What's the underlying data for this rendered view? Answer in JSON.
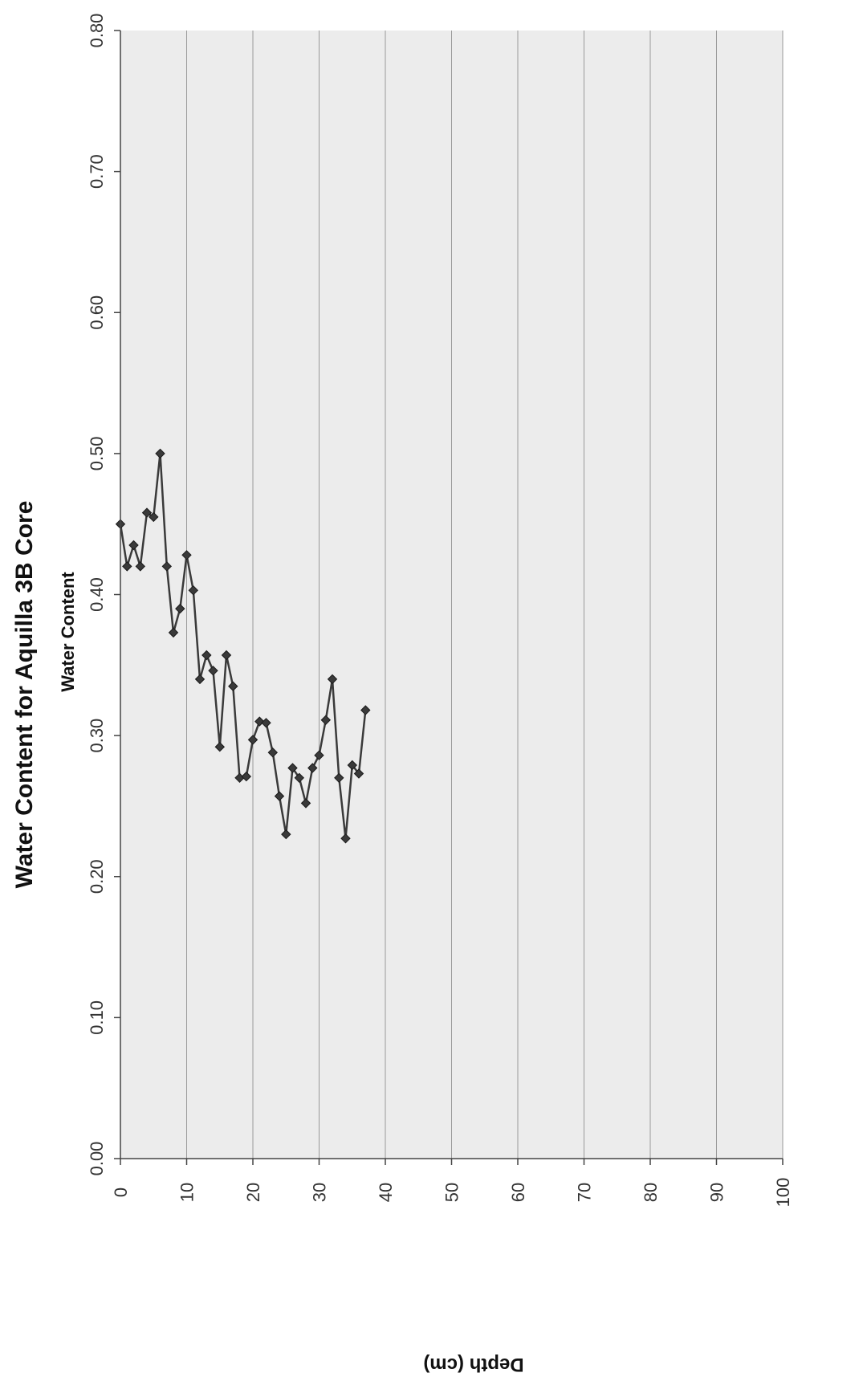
{
  "chart_data": {
    "type": "line",
    "title": "Water Content for Aquilla 3B Core",
    "subtitle": "Water Content",
    "xlabel": "Depth (cm)",
    "ylabel": "",
    "xlim": [
      0,
      100
    ],
    "ylim": [
      0.0,
      0.8
    ],
    "x_ticks": [
      "0",
      "10",
      "20",
      "30",
      "40",
      "50",
      "60",
      "70",
      "80",
      "90",
      "100"
    ],
    "y_ticks": [
      "0.00",
      "0.10",
      "0.20",
      "0.30",
      "0.40",
      "0.50",
      "0.60",
      "0.70",
      "0.80"
    ],
    "grid": true,
    "marker": "diamond",
    "series": [
      {
        "x": [
          0,
          1,
          2,
          3,
          4,
          5,
          6,
          7,
          8,
          9,
          10,
          11,
          12,
          13,
          14,
          15,
          16,
          17,
          18,
          19,
          20,
          21,
          22,
          23,
          24,
          25,
          26,
          27,
          28,
          29,
          30,
          31,
          32,
          33,
          34,
          35,
          36,
          37
        ],
        "values": [
          0.45,
          0.42,
          0.435,
          0.42,
          0.458,
          0.455,
          0.5,
          0.42,
          0.373,
          0.39,
          0.428,
          0.403,
          0.34,
          0.357,
          0.346,
          0.292,
          0.357,
          0.335,
          0.27,
          0.271,
          0.297,
          0.31,
          0.309,
          0.288,
          0.257,
          0.23,
          0.277,
          0.27,
          0.252,
          0.277,
          0.286,
          0.311,
          0.34,
          0.27,
          0.227,
          0.279,
          0.273,
          0.318
        ]
      }
    ],
    "colors": {
      "line": "#3a3a3a",
      "marker": "#3a3a3a",
      "grid": "#9a9a9a",
      "plot_bg": "#ececec"
    }
  }
}
